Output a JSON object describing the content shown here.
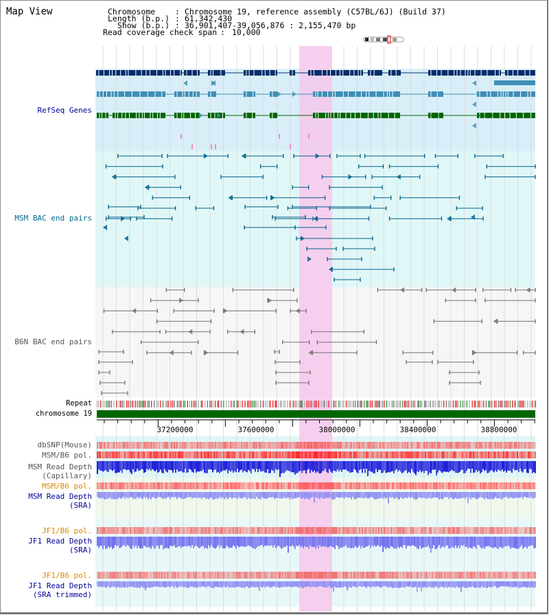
{
  "page": {
    "title": "Map View"
  },
  "info": {
    "chromosome_key": "Chromosome",
    "chromosome_value": "Chromosome 19, reference assembly (C57BL/6J) (Build 37)",
    "length_key": "Length (b.p.)",
    "length_value": "61,342,430",
    "show_key": "Show (b.p.)",
    "show_value": "36,901,407-39,056,876 : 2,155,470 bp",
    "coverage_key": "Read coverage check span",
    "coverage_value": "10,000"
  },
  "tracks": {
    "refseq": "RefSeq Genes",
    "msm_bac": "MSM BAC end pairs",
    "b6n_bac": "B6N BAC end pairs",
    "repeat": "Repeat",
    "chromosome": "chromosome 19",
    "dbsnp": "dbSNP(Mouse)",
    "msm_pol_1": "MSM/B6 pol.",
    "msm_depth_cap_1": "MSM Read Depth",
    "msm_depth_cap_2": "(Capillary)",
    "msm_pol_2": "MSM/B6 pol.",
    "msm_depth_sra_1": "MSM Read Depth",
    "msm_depth_sra_2": "(SRA)",
    "jf1_pol_1": "JF1/B6 pol.",
    "jf1_depth_1": "JF1 Read Depth",
    "jf1_depth_2": "(SRA)",
    "jf1_pol_2": "JF1/B6 pol.",
    "jf1_trim_1": "JF1 Read Depth",
    "jf1_trim_2": "(SRA trimmed)"
  },
  "axis": {
    "ticks": [
      "37200000",
      "37600000",
      "38000000",
      "38400000",
      "38800000"
    ]
  },
  "colors": {
    "refseq_bg": "#d8eef8",
    "msm_bg": "#e0f7f7",
    "highlight": "#f7c8ec",
    "gene_dark": "#002d6b",
    "gene_mid": "#3f8fb8",
    "gene_green": "#006600",
    "msm_feat": "#00608a",
    "b6n_feat": "#707070",
    "chrom_bar": "#006600",
    "depth_msm": "#1b1bd8",
    "depth_sra": "#8c8cf4",
    "pol_red": "#ff5050"
  }
}
